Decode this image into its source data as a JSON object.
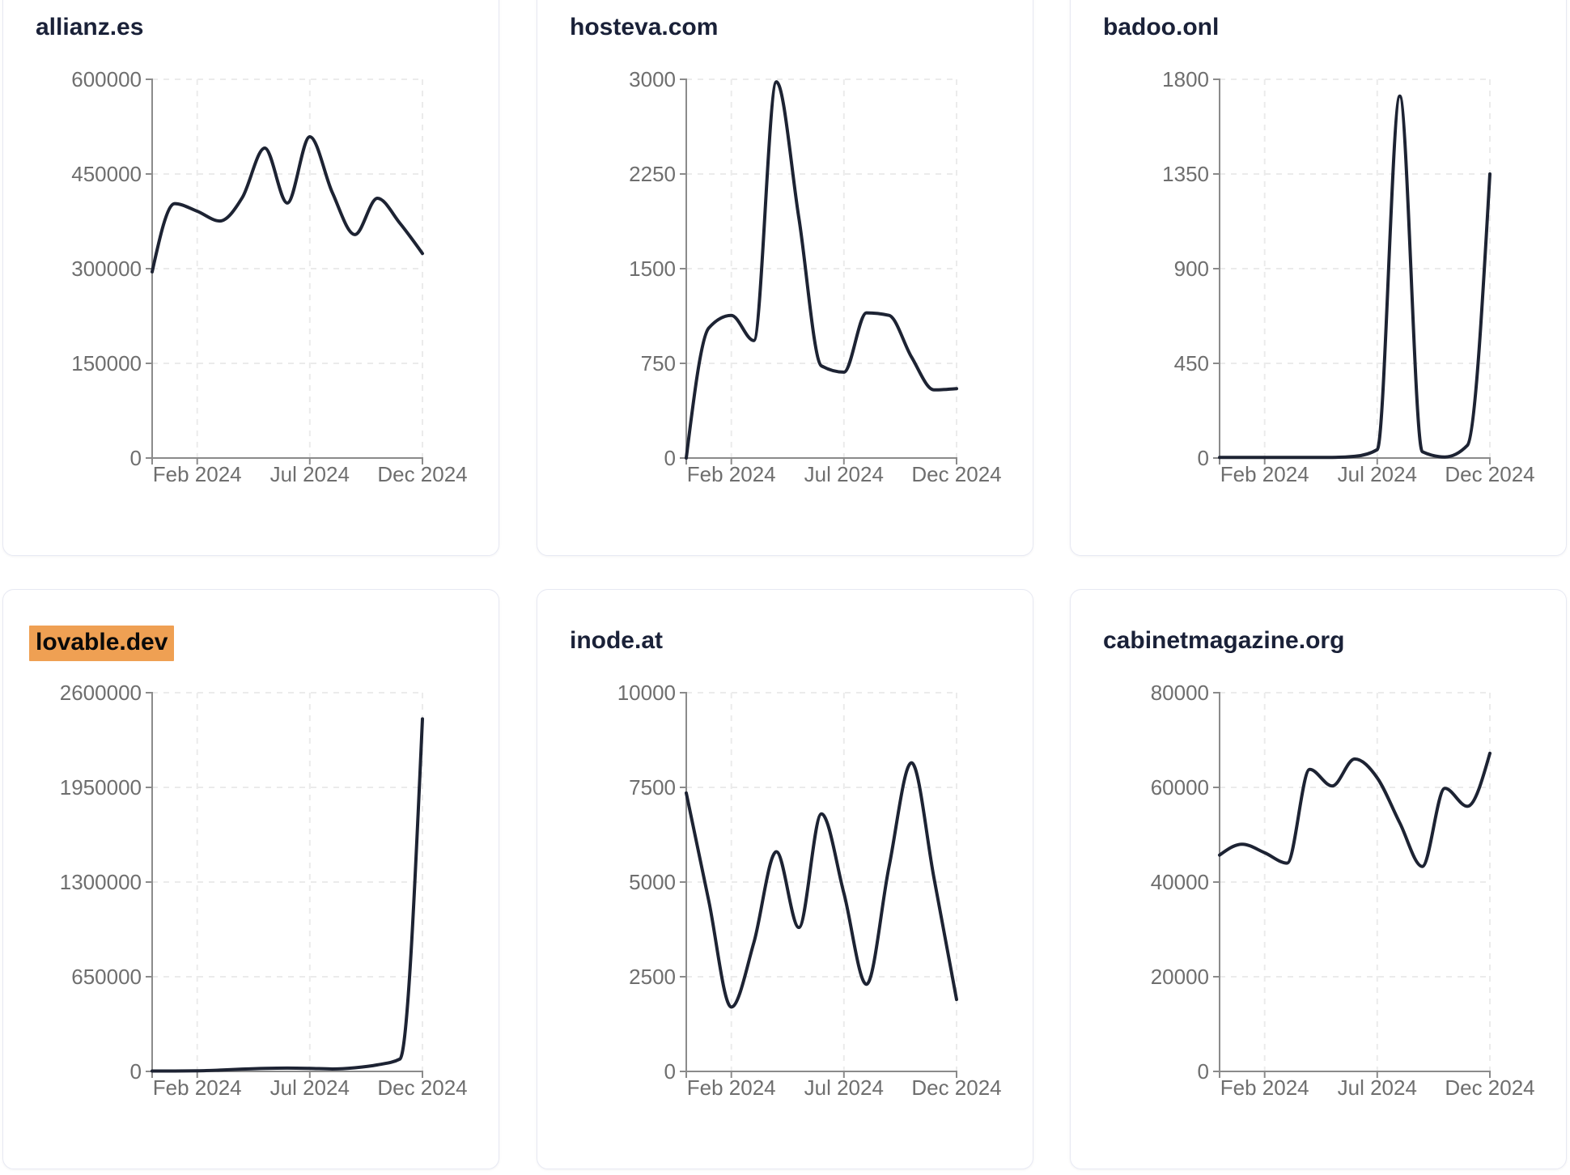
{
  "page": {
    "background": "#ffffff"
  },
  "theme": {
    "line_color": "#1d2333",
    "title_color": "#1a2138",
    "highlight_background": "#efa053",
    "highlight_text_color": "#0a0a0a",
    "axis_color": "#8b8b8b",
    "tick_label_color": "#6e6e6e",
    "gridline_color": "#ebebeb",
    "card_border_color": "#e7e9f3",
    "card_background": "#ffffff"
  },
  "chart_data": [
    {
      "type": "line",
      "title": "allianz.es",
      "highlighted": false,
      "xlabel": "",
      "ylabel": "",
      "grid": true,
      "legend": false,
      "x": [
        "Dec 2023",
        "Jan 2024",
        "Feb 2024",
        "Mar 2024",
        "Apr 2024",
        "May 2024",
        "Jun 2024",
        "Jul 2024",
        "Aug 2024",
        "Sep 2024",
        "Oct 2024",
        "Nov 2024",
        "Dec 2024"
      ],
      "values": [
        295000,
        403000,
        391000,
        375500,
        412500,
        491000,
        404000,
        509000,
        420500,
        354000,
        411500,
        372000,
        324000
      ],
      "ylim": [
        0,
        600000
      ],
      "yticks": [
        0,
        150000,
        300000,
        450000,
        600000
      ],
      "x_tick_labels": [
        "Feb 2024",
        "Jul 2024",
        "Dec 2024"
      ],
      "x_tick_month_indices": [
        2,
        7,
        12
      ]
    },
    {
      "type": "line",
      "title": "hosteva.com",
      "highlighted": false,
      "xlabel": "",
      "ylabel": "",
      "grid": true,
      "legend": false,
      "x": [
        "Dec 2023",
        "Jan 2024",
        "Feb 2024",
        "Mar 2024",
        "Apr 2024",
        "May 2024",
        "Jun 2024",
        "Jul 2024",
        "Aug 2024",
        "Sep 2024",
        "Oct 2024",
        "Nov 2024",
        "Dec 2024"
      ],
      "values": [
        0,
        1030,
        1130,
        930,
        2980,
        1900,
        730,
        680,
        1150,
        1130,
        800,
        540,
        550
      ],
      "ylim": [
        0,
        3000
      ],
      "yticks": [
        0,
        750,
        1500,
        2250,
        3000
      ],
      "x_tick_labels": [
        "Feb 2024",
        "Jul 2024",
        "Dec 2024"
      ],
      "x_tick_month_indices": [
        2,
        7,
        12
      ]
    },
    {
      "type": "line",
      "title": "badoo.onl",
      "highlighted": false,
      "xlabel": "",
      "ylabel": "",
      "grid": true,
      "legend": false,
      "x": [
        "Dec 2023",
        "Jan 2024",
        "Feb 2024",
        "Mar 2024",
        "Apr 2024",
        "May 2024",
        "Jun 2024",
        "Jul 2024",
        "Aug 2024",
        "Sep 2024",
        "Oct 2024",
        "Nov 2024",
        "Dec 2024"
      ],
      "values": [
        3,
        3,
        3,
        3,
        3,
        3,
        8,
        40,
        1720,
        30,
        5,
        60,
        1350
      ],
      "ylim": [
        0,
        1800
      ],
      "yticks": [
        0,
        450,
        900,
        1350,
        1800
      ],
      "x_tick_labels": [
        "Feb 2024",
        "Jul 2024",
        "Dec 2024"
      ],
      "x_tick_month_indices": [
        2,
        7,
        12
      ]
    },
    {
      "type": "line",
      "title": "lovable.dev",
      "highlighted": true,
      "xlabel": "",
      "ylabel": "",
      "grid": true,
      "legend": false,
      "x": [
        "Dec 2023",
        "Jan 2024",
        "Feb 2024",
        "Mar 2024",
        "Apr 2024",
        "May 2024",
        "Jun 2024",
        "Jul 2024",
        "Aug 2024",
        "Sep 2024",
        "Oct 2024",
        "Nov 2024",
        "Dec 2024"
      ],
      "values": [
        3000,
        3000,
        4000,
        9000,
        16000,
        21000,
        23000,
        21000,
        17000,
        25000,
        45000,
        85000,
        2420000
      ],
      "ylim": [
        0,
        2600000
      ],
      "yticks": [
        0,
        650000,
        1300000,
        1950000,
        2600000
      ],
      "x_tick_labels": [
        "Feb 2024",
        "Jul 2024",
        "Dec 2024"
      ],
      "x_tick_month_indices": [
        2,
        7,
        12
      ]
    },
    {
      "type": "line",
      "title": "inode.at",
      "highlighted": false,
      "xlabel": "",
      "ylabel": "",
      "grid": true,
      "legend": false,
      "x": [
        "Dec 2023",
        "Jan 2024",
        "Feb 2024",
        "Mar 2024",
        "Apr 2024",
        "May 2024",
        "Jun 2024",
        "Jul 2024",
        "Aug 2024",
        "Sep 2024",
        "Oct 2024",
        "Nov 2024",
        "Dec 2024"
      ],
      "values": [
        7350,
        4500,
        1700,
        3400,
        5800,
        3800,
        6800,
        4700,
        2300,
        5400,
        8150,
        5100,
        1900
      ],
      "ylim": [
        0,
        10000
      ],
      "yticks": [
        0,
        2500,
        5000,
        7500,
        10000
      ],
      "x_tick_labels": [
        "Feb 2024",
        "Jul 2024",
        "Dec 2024"
      ],
      "x_tick_month_indices": [
        2,
        7,
        12
      ]
    },
    {
      "type": "line",
      "title": "cabinetmagazine.org",
      "highlighted": false,
      "xlabel": "",
      "ylabel": "",
      "grid": true,
      "legend": false,
      "x": [
        "Dec 2023",
        "Jan 2024",
        "Feb 2024",
        "Mar 2024",
        "Apr 2024",
        "May 2024",
        "Jun 2024",
        "Jul 2024",
        "Aug 2024",
        "Sep 2024",
        "Oct 2024",
        "Nov 2024",
        "Dec 2024"
      ],
      "values": [
        45700,
        48000,
        46200,
        44000,
        63800,
        60300,
        66000,
        62000,
        52500,
        43300,
        59800,
        56000,
        67200
      ],
      "ylim": [
        0,
        80000
      ],
      "yticks": [
        0,
        20000,
        40000,
        60000,
        80000
      ],
      "x_tick_labels": [
        "Feb 2024",
        "Jul 2024",
        "Dec 2024"
      ],
      "x_tick_month_indices": [
        2,
        7,
        12
      ]
    }
  ]
}
